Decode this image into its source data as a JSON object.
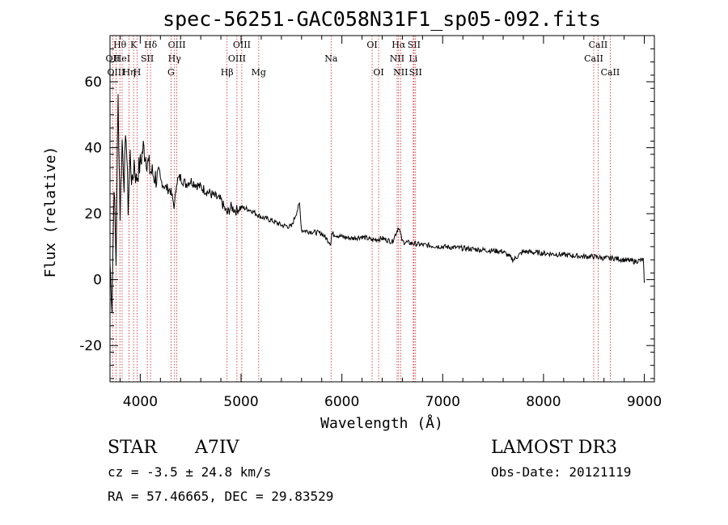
{
  "chart_data": {
    "type": "line",
    "title": "spec-56251-GAC058N31F1_sp05-092.fits",
    "xlabel": "Wavelength (Å)",
    "ylabel": "Flux (relative)",
    "xlim": [
      3700,
      9100
    ],
    "ylim": [
      -31,
      74
    ],
    "x_ticks": [
      4000,
      5000,
      6000,
      7000,
      8000,
      9000
    ],
    "y_ticks": [
      -20,
      0,
      20,
      40,
      60
    ],
    "x": [
      3700,
      3720,
      3740,
      3760,
      3780,
      3800,
      3820,
      3840,
      3860,
      3880,
      3900,
      3920,
      3940,
      3960,
      3980,
      4000,
      4030,
      4060,
      4100,
      4150,
      4200,
      4250,
      4300,
      4340,
      4360,
      4400,
      4450,
      4500,
      4600,
      4700,
      4800,
      4860,
      4900,
      4950,
      5000,
      5100,
      5200,
      5300,
      5400,
      5500,
      5580,
      5600,
      5700,
      5800,
      5890,
      5900,
      6000,
      6100,
      6200,
      6300,
      6400,
      6500,
      6563,
      6600,
      6700,
      6800,
      7000,
      7200,
      7400,
      7600,
      7700,
      7800,
      8000,
      8200,
      8400,
      8500,
      8600,
      8700,
      8800,
      8900,
      8990,
      9000
    ],
    "y": [
      5,
      -8,
      30,
      5,
      55,
      20,
      42,
      30,
      45,
      22,
      38,
      28,
      36,
      30,
      33,
      35,
      40,
      37,
      33,
      31,
      30,
      28,
      27,
      22,
      30,
      31,
      29,
      30,
      28,
      26,
      24,
      20,
      22,
      21,
      22,
      21,
      19,
      18,
      16.5,
      16,
      23,
      15,
      14.5,
      14,
      11,
      14,
      13,
      12.5,
      13,
      12,
      12.5,
      11.5,
      16,
      11.5,
      11,
      10.5,
      10,
      9.5,
      9,
      8.5,
      6,
      8.5,
      8,
      7.5,
      7,
      7,
      6.5,
      6.5,
      6,
      5.5,
      6,
      -1
    ],
    "spectral_lines": [
      {
        "label": "OII",
        "x": 3727,
        "row": 2
      },
      {
        "label": "Hθ",
        "x": 3798,
        "row": 1
      },
      {
        "label": "OIII",
        "x": 3760,
        "row": 3
      },
      {
        "label": "HeI",
        "x": 3820,
        "row": 2
      },
      {
        "label": "K",
        "x": 3934,
        "row": 1
      },
      {
        "label": "Hη",
        "x": 3889,
        "row": 3
      },
      {
        "label": "SII",
        "x": 4070,
        "row": 2
      },
      {
        "label": "H",
        "x": 3969,
        "row": 3
      },
      {
        "label": "Hδ",
        "x": 4102,
        "row": 1
      },
      {
        "label": "OIII",
        "x": 4363,
        "row": 1
      },
      {
        "label": "Hγ",
        "x": 4340,
        "row": 2
      },
      {
        "label": "G",
        "x": 4305,
        "row": 3
      },
      {
        "label": "OIII",
        "x": 5007,
        "row": 1
      },
      {
        "label": "OIII",
        "x": 4959,
        "row": 2
      },
      {
        "label": "Hβ",
        "x": 4861,
        "row": 3
      },
      {
        "label": "Mg",
        "x": 5175,
        "row": 3
      },
      {
        "label": "Na",
        "x": 5893,
        "row": 2
      },
      {
        "label": "OI",
        "x": 6300,
        "row": 1
      },
      {
        "label": "OI",
        "x": 6364,
        "row": 3
      },
      {
        "label": "Hα",
        "x": 6563,
        "row": 1
      },
      {
        "label": "SII",
        "x": 6716,
        "row": 1
      },
      {
        "label": "NII",
        "x": 6548,
        "row": 2
      },
      {
        "label": "Li",
        "x": 6708,
        "row": 2
      },
      {
        "label": "NII",
        "x": 6583,
        "row": 3
      },
      {
        "label": "SII",
        "x": 6731,
        "row": 3
      },
      {
        "label": "CaII",
        "x": 8542,
        "row": 1
      },
      {
        "label": "CaII",
        "x": 8498,
        "row": 2
      },
      {
        "label": "CaII",
        "x": 8662,
        "row": 3
      }
    ]
  },
  "info": {
    "class_label": "STAR",
    "subclass": "A7IV",
    "survey": "LAMOST DR3",
    "cz": "cz = -3.5 ± 24.8 km/s",
    "obs_date": "Obs-Date: 20121119",
    "coords": "RA =  57.46665, DEC =  29.83529"
  }
}
